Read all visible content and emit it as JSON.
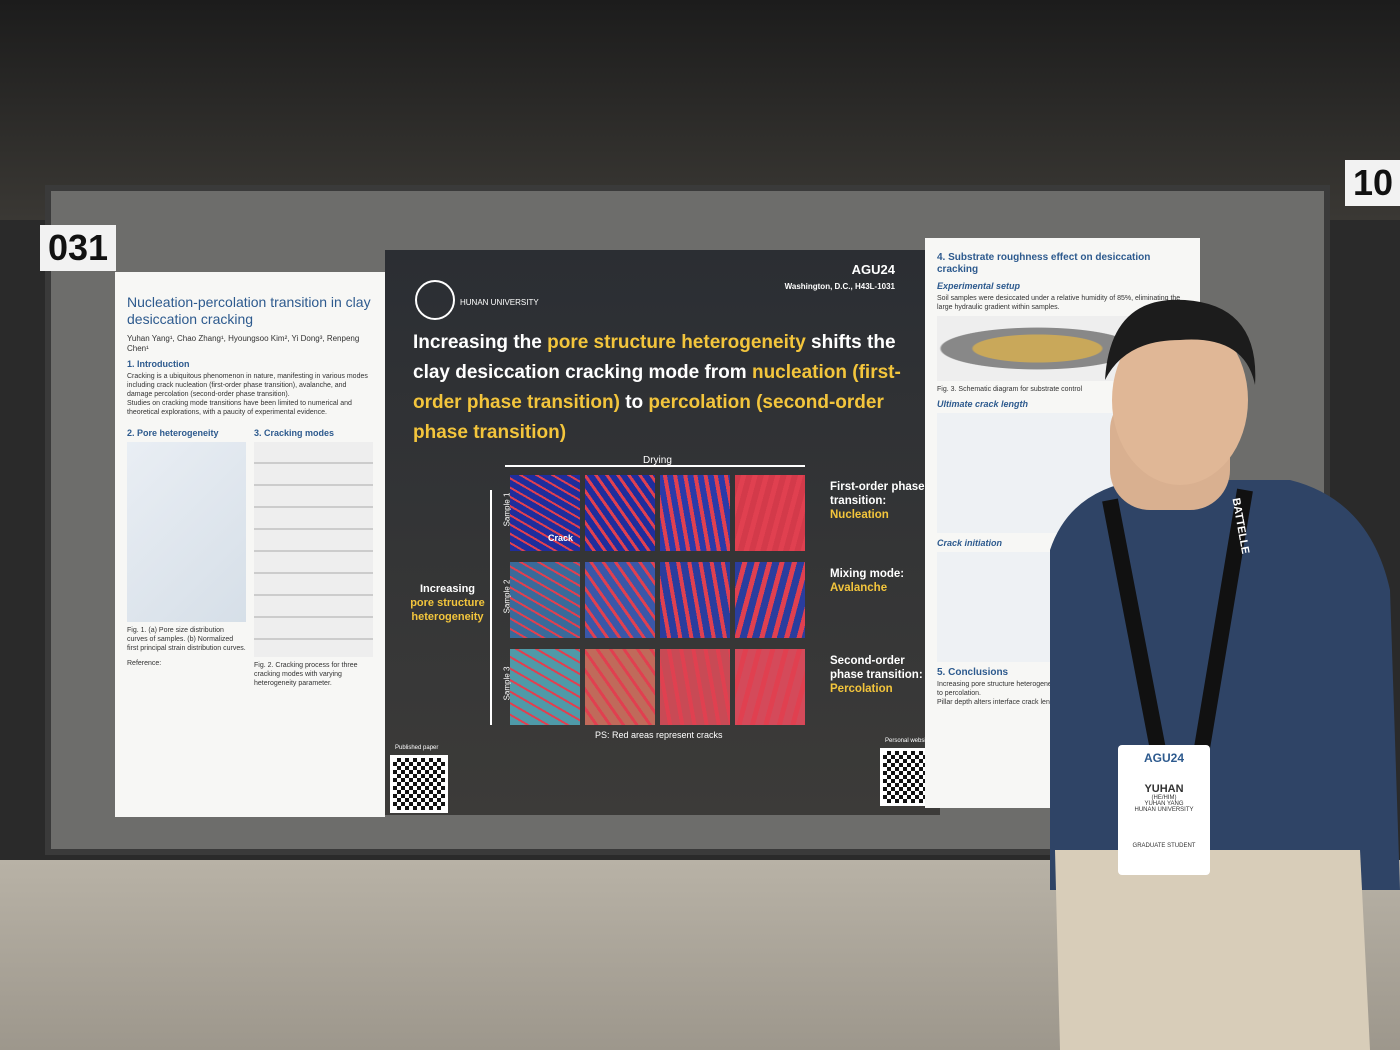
{
  "booth": {
    "number": "031",
    "neighbor": "10"
  },
  "poster": {
    "header": {
      "university": "HUNAN UNIVERSITY",
      "conference": "AGU24",
      "location": "Washington, D.C., H43L-1031"
    },
    "headline": [
      {
        "text": "Increasing the "
      },
      {
        "text": "pore structure heterogeneity",
        "highlight": true
      },
      {
        "text": " shifts the clay desiccation cracking mode from "
      },
      {
        "text": "nucleation (first-order phase transition)",
        "highlight": true
      },
      {
        "text": " to "
      },
      {
        "text": "percolation (second-order phase transition)",
        "highlight": true
      }
    ],
    "left": {
      "title": "Nucleation-percolation transition in clay desiccation cracking",
      "authors": "Yuhan Yang¹, Chao Zhang¹, Hyoungsoo Kim², Yi Dong³, Renpeng Chen¹",
      "sections": [
        "1. Introduction",
        "2. Pore heterogeneity",
        "3. Cracking modes"
      ],
      "intro": [
        "Cracking is a ubiquitous phenomenon in nature, manifesting in various modes including crack nucleation (first-order phase transition), avalanche, and damage percolation (second-order phase transition).",
        "Studies on cracking mode transitions have been limited to numerical and theoretical explorations, with a paucity of experimental evidence."
      ],
      "fig1": "Fig. 1. (a) Pore size distribution curves of samples. (b) Normalized first principal strain distribution curves.",
      "fig2": "Fig. 2. Cracking process for three cracking modes with varying heterogeneity parameter.",
      "reference": "Reference:"
    },
    "figure": {
      "drying": "Drying",
      "samples": [
        "Sample 1",
        "Sample 2",
        "Sample 3"
      ],
      "crack": "Crack",
      "increasing": "Increasing",
      "increasing_what": "pore structure heterogeneity",
      "modes": [
        {
          "label": "First-order phase transition:",
          "name": "Nucleation"
        },
        {
          "label": "Mixing mode:",
          "name": "Avalanche"
        },
        {
          "label": "Second-order phase transition:",
          "name": "Percolation"
        }
      ],
      "note": "PS: Red areas represent cracks",
      "published": "Published paper",
      "website": "Personal website"
    },
    "right": {
      "title": "4. Substrate roughness effect on desiccation cracking",
      "subsections": [
        "Experimental setup",
        "Ultimate crack length",
        "Crack initiation"
      ],
      "setup": "Soil samples were desiccated under a relative humidity of 85%, eliminating the large hydraulic gradient within samples.",
      "fig3": "Fig. 3. Schematic diagram for substrate control",
      "conclusions": "5. Conclusions",
      "conclusion_items": [
        "Increasing pore structure heterogeneity shifts the cracking mode from nucleation to percolation.",
        "Pillar depth alters interface crack length."
      ]
    }
  },
  "badge": {
    "event": "AGU24",
    "name": "YUHAN",
    "pronouns": "(HE/HIM)",
    "full_name": "YUHAN YANG",
    "affiliation": "HUNAN UNIVERSITY",
    "role": "GRADUATE STUDENT",
    "lanyard": "BATTELLE"
  }
}
